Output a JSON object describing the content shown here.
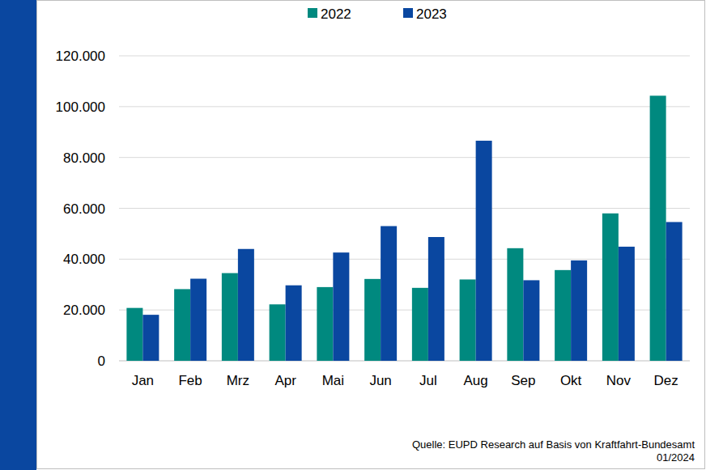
{
  "chart_data": {
    "type": "bar",
    "categories": [
      "Jan",
      "Feb",
      "Mrz",
      "Apr",
      "Mai",
      "Jun",
      "Jul",
      "Aug",
      "Sep",
      "Okt",
      "Nov",
      "Dez"
    ],
    "series": [
      {
        "name": "2022",
        "color": "#00897f",
        "values": [
          20800,
          28200,
          34500,
          22200,
          29000,
          32200,
          28700,
          32000,
          44300,
          35700,
          58000,
          104300
        ]
      },
      {
        "name": "2023",
        "color": "#0a47a0",
        "values": [
          18100,
          32300,
          44000,
          29700,
          42600,
          53000,
          48700,
          86600,
          31700,
          39500,
          44900,
          54600
        ]
      }
    ],
    "ylim": [
      0,
      120000
    ],
    "yticks": [
      0,
      {
        "value": 20000,
        "label": "20.000"
      },
      {
        "value": 40000,
        "label": "40.000"
      },
      {
        "value": 60000,
        "label": "60.000"
      },
      {
        "value": 80000,
        "label": "80.000"
      },
      {
        "value": 100000,
        "label": "100.000"
      },
      {
        "value": 120000,
        "label": "120.000"
      }
    ],
    "grid": true,
    "legend": "top",
    "annotations": [
      "Quelle: EUPD Research auf Basis von Kraftfahrt-Bundesamt",
      "01/2024"
    ]
  }
}
